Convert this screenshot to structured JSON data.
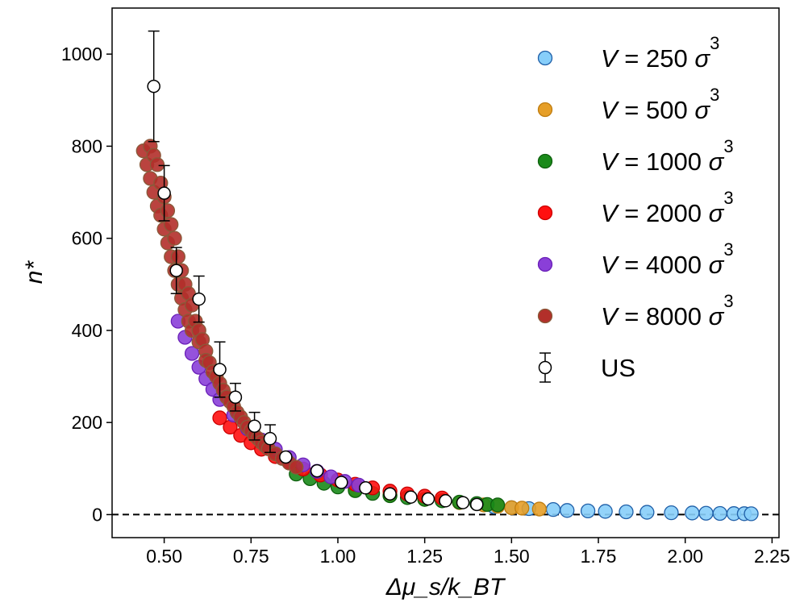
{
  "chart_data": {
    "type": "scatter",
    "title": "",
    "xlabel": "Δμ_s/k_BT",
    "ylabel": "n*",
    "xlim": [
      0.35,
      2.27
    ],
    "ylim": [
      -50,
      1100
    ],
    "xticks": [
      0.5,
      0.75,
      1.0,
      1.25,
      1.5,
      1.75,
      2.0,
      2.25
    ],
    "xtick_labels": [
      "0.50",
      "0.75",
      "1.00",
      "1.25",
      "1.50",
      "1.75",
      "2.00",
      "2.25"
    ],
    "yticks": [
      0,
      200,
      400,
      600,
      800,
      1000
    ],
    "ytick_labels": [
      "0",
      "200",
      "400",
      "600",
      "800",
      "1000"
    ],
    "grid": false,
    "legend_position": "top-right",
    "reference_line": {
      "y": 0,
      "style": "dashed",
      "color": "#000000"
    },
    "series": [
      {
        "name": "V = 250 σ³",
        "label_parts": {
          "var": "V",
          "eq": " = ",
          "num": "250",
          "unit": "σ",
          "exp": "3"
        },
        "color": "#87cefa",
        "edge": "#1f5fa8",
        "x": [
          1.45,
          1.5,
          1.55,
          1.62,
          1.66,
          1.72,
          1.77,
          1.83,
          1.89,
          1.96,
          2.02,
          2.06,
          2.1,
          2.14,
          2.17,
          2.19
        ],
        "y": [
          17,
          15,
          13,
          11,
          9,
          8,
          7,
          6,
          5,
          4,
          3.5,
          3,
          2.5,
          2.2,
          2,
          1.8
        ]
      },
      {
        "name": "V = 500 σ³",
        "label_parts": {
          "var": "V",
          "eq": " = ",
          "num": "500",
          "unit": "σ",
          "exp": "3"
        },
        "color": "#e69f28",
        "edge": "#c07d10",
        "x": [
          1.05,
          1.15,
          1.25,
          1.35,
          1.42,
          1.46,
          1.5,
          1.53,
          1.58
        ],
        "y": [
          54,
          43,
          33,
          26,
          21,
          18,
          15,
          14,
          12
        ]
      },
      {
        "name": "V = 1000 σ³",
        "label_parts": {
          "var": "V",
          "eq": " = ",
          "num": "1000",
          "unit": "σ",
          "exp": "3"
        },
        "color": "#1a8a1a",
        "edge": "#0e600e",
        "x": [
          0.88,
          0.92,
          0.96,
          1.0,
          1.05,
          1.1,
          1.15,
          1.2,
          1.25,
          1.3,
          1.35,
          1.4,
          1.43,
          1.46
        ],
        "y": [
          88,
          78,
          68,
          60,
          52,
          46,
          41,
          37,
          33,
          30,
          27,
          24,
          22,
          21
        ]
      },
      {
        "name": "V = 2000 σ³",
        "label_parts": {
          "var": "V",
          "eq": " = ",
          "num": "2000",
          "unit": "σ",
          "exp": "3"
        },
        "color": "#ff1010",
        "edge": "#cc0000",
        "x": [
          0.66,
          0.69,
          0.72,
          0.75,
          0.78,
          0.82,
          0.86,
          0.9,
          0.95,
          1.0,
          1.05,
          1.1,
          1.15,
          1.2,
          1.25,
          1.3
        ],
        "y": [
          210,
          190,
          172,
          156,
          142,
          126,
          112,
          99,
          86,
          75,
          66,
          58,
          51,
          45,
          40,
          36
        ]
      },
      {
        "name": "V = 4000 σ³",
        "label_parts": {
          "var": "V",
          "eq": " = ",
          "num": "4000",
          "unit": "σ",
          "exp": "3"
        },
        "color": "#8a3fd8",
        "edge": "#6a20b8",
        "x": [
          0.54,
          0.56,
          0.58,
          0.6,
          0.62,
          0.64,
          0.66,
          0.7,
          0.74,
          0.78,
          0.82,
          0.86,
          0.9,
          0.94,
          0.98,
          1.02,
          1.06
        ],
        "y": [
          420,
          385,
          350,
          320,
          295,
          272,
          250,
          216,
          186,
          162,
          142,
          124,
          108,
          94,
          82,
          72,
          64
        ]
      },
      {
        "name": "V = 8000 σ³",
        "label_parts": {
          "var": "V",
          "eq": " = ",
          "num": "8000",
          "unit": "σ",
          "exp": "3"
        },
        "color": "#b22f2a",
        "edge": "#8a5a3a",
        "x": [
          0.44,
          0.45,
          0.46,
          0.46,
          0.47,
          0.47,
          0.48,
          0.48,
          0.49,
          0.49,
          0.5,
          0.5,
          0.51,
          0.51,
          0.52,
          0.52,
          0.53,
          0.53,
          0.54,
          0.54,
          0.55,
          0.55,
          0.56,
          0.56,
          0.57,
          0.57,
          0.58,
          0.58,
          0.59,
          0.6,
          0.6,
          0.61,
          0.62,
          0.62,
          0.63,
          0.64,
          0.65,
          0.66,
          0.67,
          0.68,
          0.69,
          0.7,
          0.71,
          0.72,
          0.73,
          0.74,
          0.75,
          0.76,
          0.77,
          0.78,
          0.79,
          0.8,
          0.82,
          0.84,
          0.86,
          0.88
        ],
        "y": [
          790,
          760,
          800,
          730,
          780,
          700,
          760,
          670,
          720,
          650,
          690,
          620,
          660,
          590,
          630,
          560,
          600,
          530,
          560,
          500,
          530,
          470,
          500,
          445,
          480,
          420,
          455,
          400,
          420,
          400,
          375,
          380,
          355,
          335,
          330,
          310,
          300,
          285,
          270,
          255,
          245,
          235,
          222,
          212,
          200,
          190,
          182,
          172,
          165,
          157,
          150,
          143,
          132,
          122,
          112,
          103
        ]
      }
    ],
    "errorbar_series": {
      "name": "US",
      "label": "US",
      "marker_fill": "#ffffff",
      "marker_edge": "#000000",
      "x": [
        0.47,
        0.5,
        0.535,
        0.6,
        0.66,
        0.705,
        0.76,
        0.805,
        0.85,
        0.94,
        1.01,
        1.08,
        1.15,
        1.21,
        1.26,
        1.31,
        1.36,
        1.4
      ],
      "y": [
        930,
        698,
        530,
        468,
        315,
        255,
        192,
        165,
        125,
        95,
        70,
        58,
        45,
        38,
        34,
        30,
        26,
        22
      ],
      "err": [
        120,
        60,
        50,
        50,
        60,
        30,
        30,
        30,
        0,
        0,
        0,
        0,
        0,
        0,
        0,
        0,
        0,
        0
      ]
    }
  }
}
